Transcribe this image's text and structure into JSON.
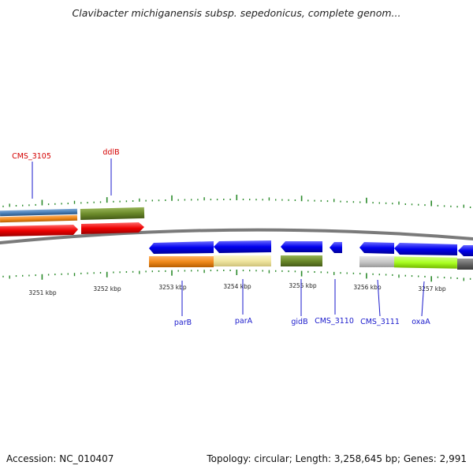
{
  "title": "Clavibacter michiganensis subsp. sepedonicus, complete genom...",
  "footer": {
    "accession": "Accession: NC_010407",
    "topology": "Topology: circular; Length: 3,258,645 bp; Genes: 2,991"
  },
  "ruler": {
    "tick_labels": [
      "3251 kbp",
      "3252 kbp",
      "3253 kbp",
      "3254 kbp",
      "3255 kbp",
      "3256 kbp",
      "3257 kbp"
    ]
  },
  "gene_labels": {
    "forward": [
      "CMS_3105",
      "ddlB"
    ],
    "reverse": [
      "parB",
      "parA",
      "gidB",
      "CMS_3110",
      "CMS_3111",
      "oxaA"
    ]
  },
  "colors": {
    "backbone": "#8a8a8a",
    "gene_arrow": "#0000ee",
    "forward_cds": "#ee0000",
    "tick": "#2a8a2a",
    "label_forward": "#d40000",
    "label_reverse": "#1a1acc",
    "orange": "#f08a1c",
    "khaki": "#f0e6a0",
    "olive": "#6b8a2a",
    "steelblue": "#4a80b8",
    "lightgrey": "#c8c8c8",
    "lime": "#aaff22",
    "darkgrey": "#666666"
  }
}
